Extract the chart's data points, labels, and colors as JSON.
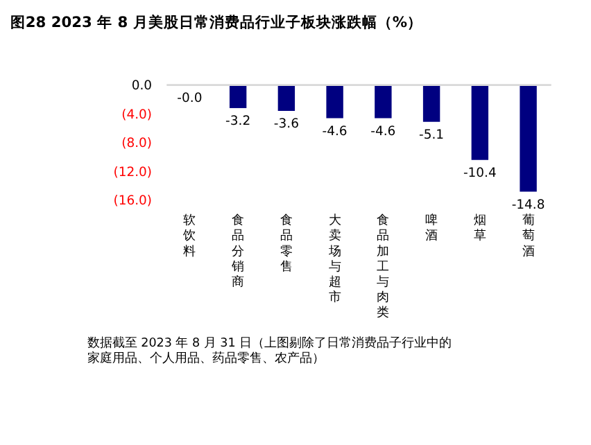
{
  "chart_data": {
    "type": "bar",
    "title": "图28 2023 年 8 月美股日常消费品行业子板块涨跌幅（%）",
    "categories": [
      "软饮料",
      "食品分销商",
      "食品零售",
      "大卖场与超市",
      "食品加工与肉类",
      "啤酒",
      "烟草",
      "葡萄酒"
    ],
    "values": [
      -0.0,
      -3.2,
      -3.6,
      -4.6,
      -4.6,
      -5.1,
      -10.4,
      -14.8
    ],
    "colors": [
      "#bfbfbf",
      "#000080",
      "#000080",
      "#000080",
      "#000080",
      "#000080",
      "#000080",
      "#000080"
    ],
    "value_labels": [
      "-0.0",
      "-3.2",
      "-3.6",
      "-4.6",
      "-4.6",
      "-5.1",
      "-10.4",
      "-14.8"
    ],
    "ylim": [
      -16,
      0
    ],
    "yticks": [
      {
        "value": 0,
        "label": "0.0"
      },
      {
        "value": -4,
        "label": "(4.0)"
      },
      {
        "value": -8,
        "label": "(8.0)"
      },
      {
        "value": -12,
        "label": "(12.0)"
      },
      {
        "value": -16,
        "label": "(16.0)"
      }
    ],
    "ref_lines": [
      {
        "axis": "y",
        "value": 0,
        "color": "#d9d9d9"
      }
    ],
    "grid": false,
    "annotations": [
      "数据截至 2023 年 8 月 31 日（上图剔除了日常消费品子行业中的家庭用品、个人用品、药品零售、农产品）"
    ]
  }
}
